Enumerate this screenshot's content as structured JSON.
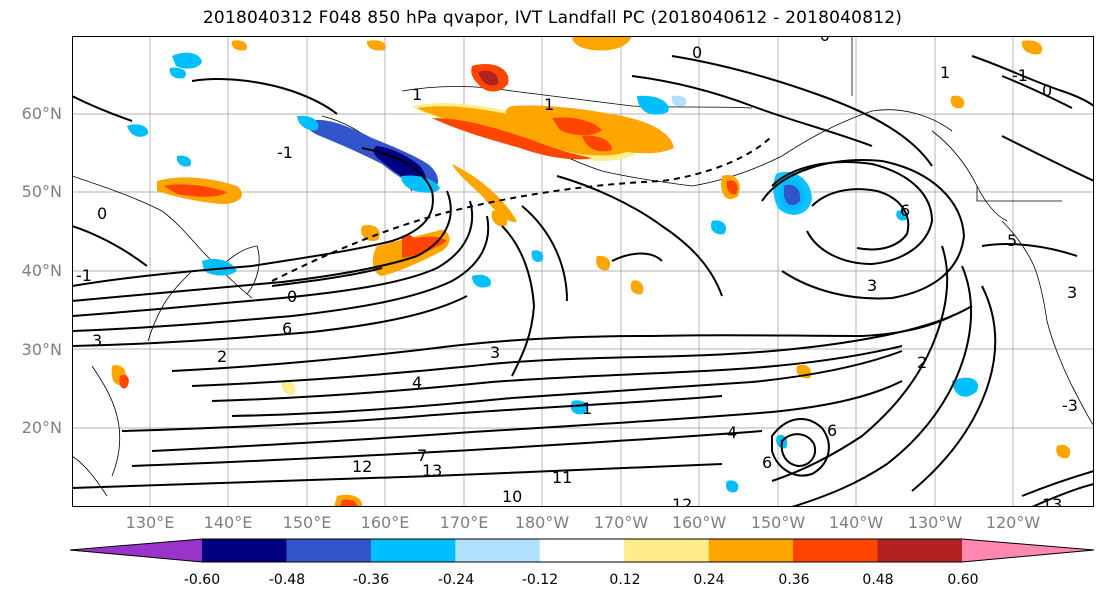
{
  "title": "2018040312 F048 850 hPa qvapor, IVT Landfall PC (2018040612 - 2018040812)",
  "map": {
    "lat_labels": [
      "60°N",
      "50°N",
      "40°N",
      "30°N",
      "20°N"
    ],
    "lon_labels": [
      "130°E",
      "140°E",
      "150°E",
      "160°E",
      "170°E",
      "180°W",
      "170°W",
      "160°W",
      "150°W",
      "140°W",
      "130°W",
      "120°W"
    ],
    "contour_labels": [
      "0",
      "1",
      "-1",
      "0",
      "0",
      "1",
      "-1",
      "1",
      "0",
      "6",
      "5",
      "3",
      "3",
      "6",
      "3",
      "2",
      "2",
      "4",
      "4",
      "3",
      "-1",
      "6",
      "-0",
      "-3",
      "1",
      "6",
      "7",
      "12",
      "13",
      "11",
      "10",
      "12",
      "13"
    ]
  },
  "colorbar": {
    "ticks": [
      "-0.60",
      "-0.48",
      "-0.36",
      "-0.24",
      "-0.12",
      "0.12",
      "0.24",
      "0.36",
      "0.48",
      "0.60"
    ],
    "colors": [
      "#9933cc",
      "#000080",
      "#3355cc",
      "#00bfff",
      "#b0e2ff",
      "#ffffff",
      "#ffec8b",
      "#ffa500",
      "#ff4500",
      "#b22222",
      "#ff88b0"
    ]
  }
}
